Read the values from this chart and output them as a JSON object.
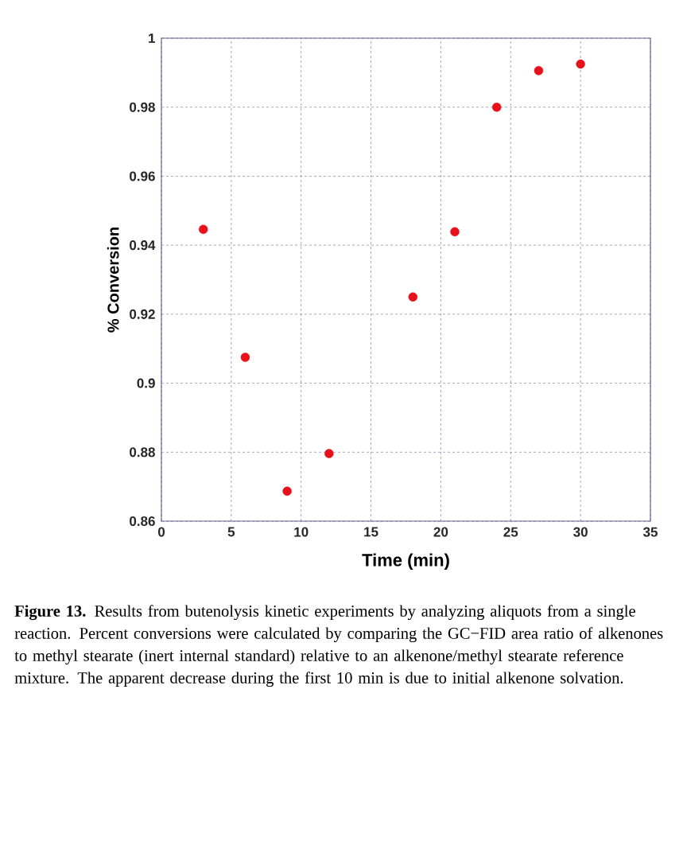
{
  "chart_data": {
    "type": "scatter",
    "xlabel": "Time (min)",
    "ylabel": "% Conversion",
    "x": [
      3,
      6,
      9,
      12,
      18,
      21,
      24,
      27,
      30
    ],
    "series": [
      {
        "color": "#e8101a",
        "values": [
          0.9446,
          0.9075,
          0.8687,
          0.8796,
          0.925,
          0.9439,
          0.98,
          0.9906,
          0.9925
        ]
      }
    ],
    "xlim": [
      0,
      35
    ],
    "ylim": [
      0.86,
      1
    ],
    "xticks": [
      0,
      5,
      10,
      15,
      20,
      25,
      30,
      35
    ],
    "yticks": [
      0.86,
      0.88,
      0.9,
      0.92,
      0.94,
      0.96,
      0.98,
      1
    ],
    "grid": true,
    "marker": "circle",
    "annotations": [
      "**Figure 13.** Results from butenolysis kinetic experiments by analyzing aliquots from a single reaction. Percent conversions were calculated by comparing the GC−FID area ratio of alkenones to methyl stearate (inert internal standard) relative to an alkenone/methyl stearate reference mixture. The apparent decrease during the first 10 min is due to initial alkenone solvation."
    ]
  }
}
